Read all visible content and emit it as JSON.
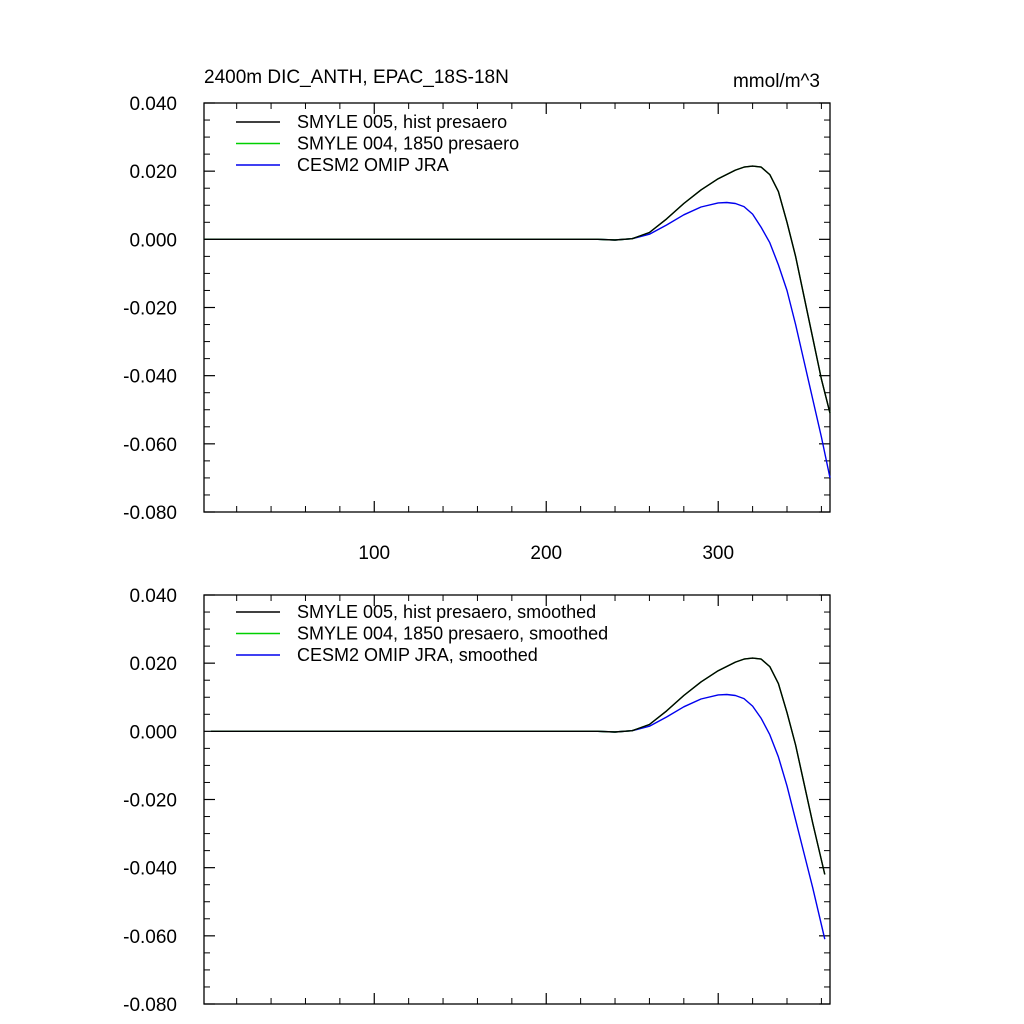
{
  "chart_data": [
    {
      "type": "line",
      "title_left": "2400m DIC_ANTH, EPAC_18S-18N",
      "title_right": "mmol/m^3",
      "xlim": [
        1,
        365
      ],
      "ylim": [
        -0.08,
        0.04
      ],
      "xticks": [
        100,
        200,
        300
      ],
      "xtick_labels": [
        "100",
        "200",
        "300"
      ],
      "yticks": [
        0.04,
        0.02,
        0.0,
        -0.02,
        -0.04,
        -0.06,
        -0.08
      ],
      "ytick_labels": [
        "0.040",
        "0.020",
        "0.000",
        "-0.020",
        "-0.040",
        "-0.060",
        "-0.080"
      ],
      "legend_position": "top-left",
      "series": [
        {
          "name": "SMYLE 005, hist presaero",
          "color": "#000000",
          "x": [
            1,
            230,
            240,
            250,
            260,
            270,
            280,
            290,
            300,
            310,
            315,
            320,
            325,
            330,
            335,
            340,
            345,
            350,
            355,
            360,
            365
          ],
          "y": [
            0,
            0,
            -0.0002,
            0.0002,
            0.002,
            0.006,
            0.0105,
            0.0145,
            0.0178,
            0.0203,
            0.0212,
            0.0215,
            0.0212,
            0.019,
            0.014,
            0.005,
            -0.005,
            -0.017,
            -0.029,
            -0.041,
            -0.051
          ]
        },
        {
          "name": "SMYLE 004, 1850 presaero",
          "color": "#00d000",
          "x": [
            1,
            230,
            240,
            250,
            260,
            270,
            280,
            290,
            300,
            310,
            315,
            320,
            325,
            330,
            335,
            340,
            345,
            350,
            355,
            360,
            365
          ],
          "y": [
            0,
            0,
            -0.0002,
            0.0002,
            0.002,
            0.006,
            0.0105,
            0.0145,
            0.0178,
            0.0203,
            0.0212,
            0.0215,
            0.0212,
            0.019,
            0.014,
            0.005,
            -0.005,
            -0.017,
            -0.029,
            -0.041,
            -0.051
          ]
        },
        {
          "name": "CESM2 OMIP JRA",
          "color": "#0000ee",
          "x": [
            1,
            230,
            240,
            250,
            260,
            270,
            280,
            290,
            300,
            305,
            310,
            315,
            320,
            325,
            330,
            335,
            340,
            345,
            350,
            355,
            360,
            365
          ],
          "y": [
            0,
            0,
            -0.0002,
            0.0002,
            0.0015,
            0.0042,
            0.0072,
            0.0095,
            0.0107,
            0.0108,
            0.0105,
            0.0096,
            0.0074,
            0.0035,
            -0.001,
            -0.0075,
            -0.015,
            -0.025,
            -0.036,
            -0.047,
            -0.058,
            -0.07
          ]
        }
      ]
    },
    {
      "type": "line",
      "xlim": [
        1,
        365
      ],
      "ylim": [
        -0.08,
        0.04
      ],
      "xticks": [
        100,
        200,
        300
      ],
      "yticks": [
        0.04,
        0.02,
        0.0,
        -0.02,
        -0.04,
        -0.06,
        -0.08
      ],
      "ytick_labels": [
        "0.040",
        "0.020",
        "0.000",
        "-0.020",
        "-0.040",
        "-0.060",
        "-0.080"
      ],
      "legend_position": "top-left",
      "series": [
        {
          "name": "SMYLE 005, hist presaero, smoothed",
          "color": "#000000",
          "x": [
            5,
            230,
            240,
            250,
            260,
            270,
            280,
            290,
            300,
            310,
            315,
            320,
            325,
            330,
            335,
            340,
            345,
            350,
            355,
            362
          ],
          "y": [
            0,
            0,
            -0.0002,
            0.0002,
            0.002,
            0.006,
            0.0105,
            0.0145,
            0.0178,
            0.0203,
            0.0212,
            0.0215,
            0.0212,
            0.019,
            0.014,
            0.0055,
            -0.004,
            -0.0155,
            -0.027,
            -0.042
          ]
        },
        {
          "name": "SMYLE 004, 1850 presaero, smoothed",
          "color": "#00d000",
          "x": [
            5,
            230,
            240,
            250,
            260,
            270,
            280,
            290,
            300,
            310,
            315,
            320,
            325,
            330,
            335,
            340,
            345,
            350,
            355,
            362
          ],
          "y": [
            0,
            0,
            -0.0002,
            0.0002,
            0.002,
            0.006,
            0.0105,
            0.0145,
            0.0178,
            0.0203,
            0.0212,
            0.0215,
            0.0212,
            0.019,
            0.014,
            0.0055,
            -0.004,
            -0.0155,
            -0.027,
            -0.042
          ]
        },
        {
          "name": "CESM2 OMIP JRA, smoothed",
          "color": "#0000ee",
          "x": [
            5,
            230,
            240,
            250,
            260,
            270,
            280,
            290,
            300,
            305,
            310,
            315,
            320,
            325,
            330,
            335,
            340,
            345,
            350,
            355,
            362
          ],
          "y": [
            0,
            0,
            -0.0002,
            0.0002,
            0.0015,
            0.0042,
            0.0072,
            0.0095,
            0.0107,
            0.0108,
            0.0105,
            0.0096,
            0.0074,
            0.0038,
            -0.001,
            -0.0075,
            -0.016,
            -0.026,
            -0.036,
            -0.046,
            -0.061
          ]
        }
      ]
    }
  ]
}
